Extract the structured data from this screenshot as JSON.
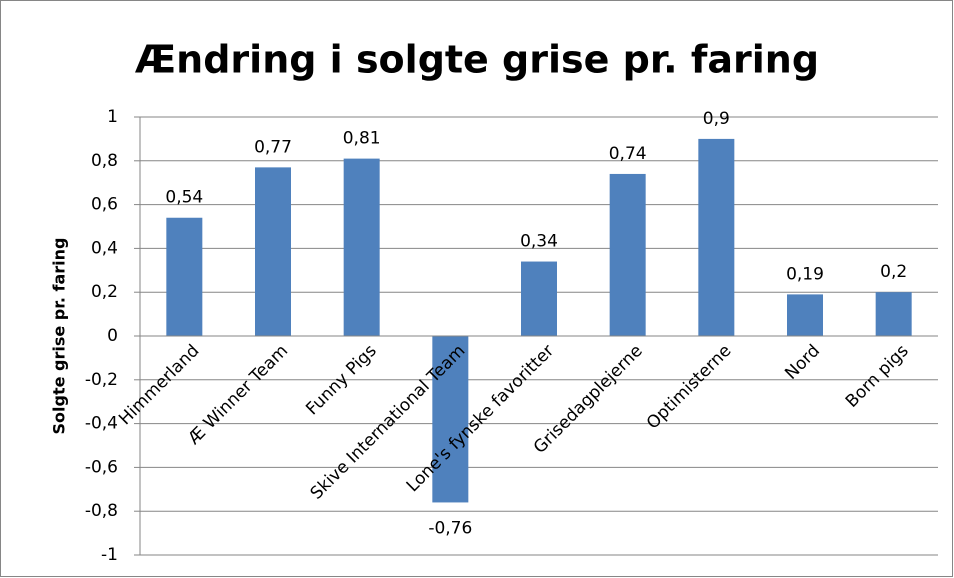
{
  "chart_data": {
    "type": "bar",
    "title": "Ændring i solgte grise pr. faring",
    "y_label": "Solgte grise pr. faring",
    "categories": [
      "Himmerland",
      "Æ Winner Team",
      "Funny Pigs",
      "Skive International Team",
      "Lone's fynske favoritter",
      "Grisedagplejerne",
      "Optimisterne",
      "Nord",
      "Born pigs"
    ],
    "values": [
      0.54,
      0.77,
      0.81,
      -0.76,
      0.34,
      0.74,
      0.9,
      0.19,
      0.2
    ],
    "value_labels": [
      "0,54",
      "0,77",
      "0,81",
      "-0,76",
      "0,34",
      "0,74",
      "0,9",
      "0,19",
      "0,2"
    ],
    "color": "#4f81bd",
    "ylim": [
      -1,
      1
    ],
    "yticks": [
      -1,
      {
        "value": -0.8,
        "label": "-0,8"
      },
      {
        "value": -0.6,
        "label": "-0,6"
      },
      {
        "value": -0.4,
        "label": "-0,4"
      },
      {
        "value": -0.2,
        "label": "-0,2"
      },
      0,
      {
        "value": 0.2,
        "label": "0,2"
      },
      {
        "value": 0.4,
        "label": "0,4"
      },
      {
        "value": 0.6,
        "label": "0,6"
      },
      {
        "value": 0.8,
        "label": "0,8"
      },
      1
    ],
    "grid": true
  }
}
